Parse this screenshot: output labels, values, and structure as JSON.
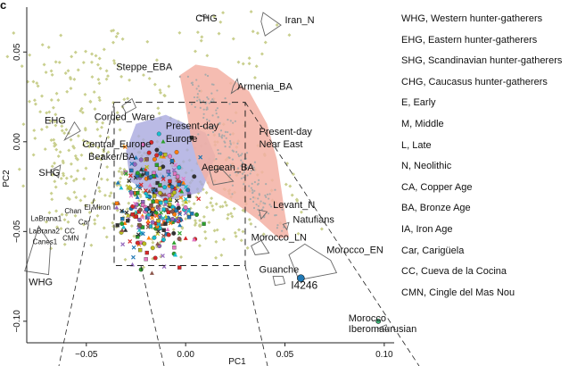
{
  "panel_label": "c",
  "chart_data": {
    "type": "scatter",
    "title": "",
    "xlabel": "PC1",
    "ylabel": "PC2",
    "xlim": [
      -0.08,
      0.105
    ],
    "ylim": [
      -0.112,
      0.075
    ],
    "x_ticks": [
      -0.05,
      0.0,
      0.05,
      0.1
    ],
    "x_tick_labels": [
      "−0.05",
      "0.00",
      "0.05",
      "0.10"
    ],
    "y_ticks": [
      -0.1,
      -0.05,
      0.0,
      0.05
    ],
    "y_tick_labels": [
      "−0.10",
      "−0.05",
      "0.00",
      "0.05"
    ],
    "grid": false,
    "colors": {
      "background_dots": "#c9cf8e",
      "modern_dots": "#aaaaaa",
      "near_east_fill": "#f3b0a3",
      "europe_fill": "#a9a9de",
      "i4246_marker": "#1f78b4",
      "iberomaurusian_marker": "#3fbf7f"
    },
    "regions": [
      {
        "label": "Present-day Europe",
        "points": [
          [
            -0.03,
            -0.005
          ],
          [
            -0.025,
            0.01
          ],
          [
            -0.01,
            0.015
          ],
          [
            0.01,
            0.005
          ],
          [
            0.015,
            -0.008
          ],
          [
            0.008,
            -0.028
          ],
          [
            -0.01,
            -0.033
          ],
          [
            -0.028,
            -0.022
          ]
        ]
      },
      {
        "label": "Present-day Near East",
        "points": [
          [
            -0.003,
            0.037
          ],
          [
            0.005,
            0.043
          ],
          [
            0.016,
            0.041
          ],
          [
            0.032,
            0.028
          ],
          [
            0.041,
            0.01
          ],
          [
            0.046,
            -0.01
          ],
          [
            0.05,
            -0.04
          ],
          [
            0.052,
            -0.053
          ],
          [
            0.047,
            -0.054
          ],
          [
            0.037,
            -0.044
          ],
          [
            0.026,
            -0.035
          ],
          [
            0.012,
            -0.026
          ],
          [
            0.006,
            -0.012
          ],
          [
            0.003,
            0.0
          ],
          [
            0.0,
            0.02
          ]
        ]
      }
    ],
    "group_hulls": [
      {
        "label": "CHG",
        "points": [
          [
            0.007,
            0.07
          ],
          [
            0.01,
            0.071
          ],
          [
            0.011,
            0.0695
          ]
        ]
      },
      {
        "label": "Iran_N",
        "points": [
          [
            0.039,
            0.072
          ],
          [
            0.048,
            0.065
          ],
          [
            0.04,
            0.059
          ],
          [
            0.038,
            0.067
          ]
        ]
      },
      {
        "label": "Steppe_EBA",
        "points": [
          [
            -0.032,
            0.02
          ],
          [
            -0.027,
            0.024
          ],
          [
            -0.025,
            0.019
          ],
          [
            -0.03,
            0.016
          ]
        ]
      },
      {
        "label": "Armenia_BA",
        "points": [
          [
            0.024,
            0.031
          ],
          [
            0.026,
            0.035
          ],
          [
            0.027,
            0.03
          ],
          [
            0.023,
            0.027
          ]
        ]
      },
      {
        "label": "EHG",
        "points": [
          [
            -0.061,
            0.001
          ],
          [
            -0.056,
            0.011
          ],
          [
            -0.053,
            0.006
          ]
        ]
      },
      {
        "label": "SHG",
        "points": [
          [
            -0.068,
            -0.016
          ],
          [
            -0.063,
            -0.013
          ],
          [
            -0.064,
            -0.02
          ]
        ]
      },
      {
        "label": "WHG",
        "points": [
          [
            -0.081,
            -0.072
          ],
          [
            -0.074,
            -0.047
          ],
          [
            -0.068,
            -0.057
          ],
          [
            -0.069,
            -0.074
          ]
        ]
      },
      {
        "label": "Aegean_BA",
        "points": [
          [
            0.012,
            -0.016
          ],
          [
            0.018,
            -0.015
          ],
          [
            0.024,
            -0.022
          ],
          [
            0.014,
            -0.024
          ]
        ]
      },
      {
        "label": "Levant_N",
        "points": [
          [
            0.037,
            -0.038
          ],
          [
            0.041,
            -0.039
          ],
          [
            0.038,
            -0.043
          ]
        ]
      },
      {
        "label": "Natufians",
        "points": [
          [
            0.049,
            -0.046
          ],
          [
            0.052,
            -0.045
          ],
          [
            0.051,
            -0.049
          ]
        ]
      },
      {
        "label": "Morocco_LN",
        "points": [
          [
            0.033,
            -0.058
          ],
          [
            0.038,
            -0.055
          ],
          [
            0.042,
            -0.062
          ],
          [
            0.035,
            -0.063
          ]
        ]
      },
      {
        "label": "Morocco_EN",
        "points": [
          [
            0.052,
            -0.063
          ],
          [
            0.06,
            -0.057
          ],
          [
            0.073,
            -0.066
          ],
          [
            0.076,
            -0.073
          ],
          [
            0.057,
            -0.077
          ]
        ]
      },
      {
        "label": "Guanche",
        "points": [
          [
            0.044,
            -0.075
          ],
          [
            0.049,
            -0.075
          ],
          [
            0.05,
            -0.079
          ],
          [
            0.045,
            -0.08
          ]
        ]
      },
      {
        "label": "Morocco Iberomaurusian",
        "points": [
          [
            0.097,
            -0.104
          ],
          [
            0.101,
            -0.102
          ],
          [
            0.102,
            -0.105
          ]
        ]
      }
    ],
    "annotations": [
      {
        "text": "CHG",
        "x": 0.005,
        "y": 0.067
      },
      {
        "text": "Iran_N",
        "x": 0.05,
        "y": 0.066
      },
      {
        "text": "Steppe_EBA",
        "x": -0.035,
        "y": 0.04
      },
      {
        "text": "Armenia_BA",
        "x": 0.026,
        "y": 0.029
      },
      {
        "text": "EHG",
        "x": -0.071,
        "y": 0.01
      },
      {
        "text": "Corded_Ware",
        "x": -0.046,
        "y": 0.012
      },
      {
        "text": "Present-day",
        "x": -0.01,
        "y": 0.007
      },
      {
        "text": "Europe",
        "x": -0.01,
        "y": 0.0
      },
      {
        "text": "Present-day",
        "x": 0.037,
        "y": 0.004
      },
      {
        "text": "Near East",
        "x": 0.037,
        "y": -0.003
      },
      {
        "text": "Central_Europe",
        "x": -0.052,
        "y": -0.003
      },
      {
        "text": "Beaker/BA",
        "x": -0.049,
        "y": -0.01
      },
      {
        "text": "Aegean_BA",
        "x": 0.008,
        "y": -0.016
      },
      {
        "text": "SHG",
        "x": -0.074,
        "y": -0.019
      },
      {
        "text": "Levant_N",
        "x": 0.044,
        "y": -0.037
      },
      {
        "text": "Natufians",
        "x": 0.054,
        "y": -0.045
      },
      {
        "text": "Morocco_LN",
        "x": 0.033,
        "y": -0.055
      },
      {
        "text": "Morocco_EN",
        "x": 0.071,
        "y": -0.062
      },
      {
        "text": "Guanche",
        "x": 0.037,
        "y": -0.073
      },
      {
        "text": "I4246",
        "x": 0.053,
        "y": -0.082
      },
      {
        "text": "Morocco",
        "x": 0.082,
        "y": -0.1
      },
      {
        "text": "Iberomaurusian",
        "x": 0.082,
        "y": -0.106
      },
      {
        "text": "WHG",
        "x": -0.079,
        "y": -0.08
      },
      {
        "text": "LaBrana1",
        "x": -0.078,
        "y": -0.044
      },
      {
        "text": "LaBrana2",
        "x": -0.079,
        "y": -0.051
      },
      {
        "text": "Canes1",
        "x": -0.077,
        "y": -0.057
      },
      {
        "text": "Chan",
        "x": -0.061,
        "y": -0.04
      },
      {
        "text": "El Miron",
        "x": -0.051,
        "y": -0.038
      },
      {
        "text": "Car",
        "x": -0.054,
        "y": -0.046
      },
      {
        "text": "CC",
        "x": -0.061,
        "y": -0.051
      },
      {
        "text": "CMN",
        "x": -0.062,
        "y": -0.055
      }
    ],
    "highlight_points": [
      {
        "label": "I4246",
        "x": 0.058,
        "y": -0.076
      },
      {
        "label": "Morocco Iberomaurusian",
        "x": 0.097,
        "y": -0.1
      }
    ],
    "zoom_box": {
      "x": [
        -0.036,
        0.03
      ],
      "y": [
        -0.069,
        0.022
      ]
    }
  },
  "legend": {
    "items": [
      "WHG, Western hunter-gatherers",
      "EHG, Eastern hunter-gatherers",
      "SHG, Scandinavian hunter-gatherers",
      "CHG, Caucasus hunter-gatherers",
      "E, Early",
      "M, Middle",
      "L, Late",
      "N, Neolithic",
      "CA, Copper Age",
      "BA, Bronze Age",
      "IA, Iron Age",
      "Car, Carigüela",
      "CC, Cueva de la Cocina",
      "CMN, Cingle del Mas Nou"
    ]
  }
}
